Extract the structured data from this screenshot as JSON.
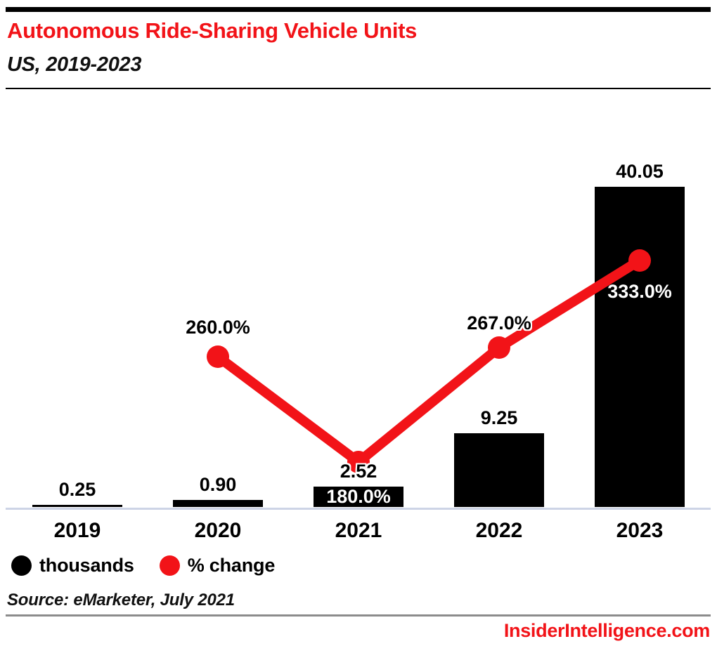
{
  "chart_data": {
    "type": "bar",
    "title": "Autonomous Ride-Sharing Vehicle Units",
    "subtitle": "US, 2019-2023",
    "categories": [
      "2019",
      "2020",
      "2021",
      "2022",
      "2023"
    ],
    "series": [
      {
        "name": "thousands",
        "type": "bar",
        "color": "#000000",
        "values": [
          0.25,
          0.9,
          2.52,
          9.25,
          40.05
        ],
        "labels": [
          "0.25",
          "0.90",
          "2.52",
          "9.25",
          "40.05"
        ]
      },
      {
        "name": "% change",
        "type": "line",
        "color": "#F21318",
        "values": [
          null,
          260.0,
          180.0,
          267.0,
          333.0
        ],
        "labels": [
          null,
          "260.0%",
          "180.0%",
          "267.0%",
          "333.0%"
        ]
      }
    ],
    "ylim": [
      0,
      45
    ],
    "y2lim": [
      150,
      360
    ],
    "grid": false,
    "legend_position": "bottom-left",
    "xlabel": "",
    "ylabel": ""
  },
  "footer": {
    "source": "Source: eMarketer, July 2021",
    "site": "InsiderIntelligence.com"
  },
  "colors": {
    "accent_red": "#F21318",
    "bar_black": "#000000",
    "axis_line": "#CDD4E6",
    "divider_gray": "#8C8C8C"
  }
}
